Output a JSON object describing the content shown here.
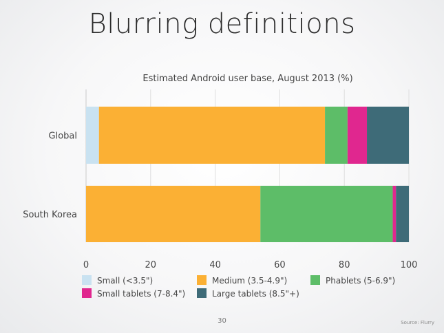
{
  "slide": {
    "title": "Blurring definitions",
    "page_number": "30",
    "source": "Source: Flurry"
  },
  "chart_data": {
    "type": "bar",
    "orientation": "horizontal",
    "stacked": true,
    "title": "Estimated Android user base, August 2013 (%)",
    "categories": [
      "Global",
      "South Korea"
    ],
    "series": [
      {
        "name": "Small (<3.5\")",
        "color": "#c9e2f1",
        "values": [
          4,
          0
        ]
      },
      {
        "name": "Medium (3.5-4.9\")",
        "color": "#fbb034",
        "values": [
          70,
          54
        ]
      },
      {
        "name": "Phablets (5-6.9\")",
        "color": "#5dbd68",
        "values": [
          7,
          41
        ]
      },
      {
        "name": "Small tablets (7-8.4\")",
        "color": "#e0278f",
        "values": [
          6,
          1
        ]
      },
      {
        "name": "Large tablets (8.5\"+)",
        "color": "#3e6b78",
        "values": [
          13,
          4
        ]
      }
    ],
    "xlim": [
      0,
      100
    ],
    "xticks": [
      0,
      20,
      40,
      60,
      80,
      100
    ],
    "grid": true,
    "legend_position": "bottom"
  }
}
